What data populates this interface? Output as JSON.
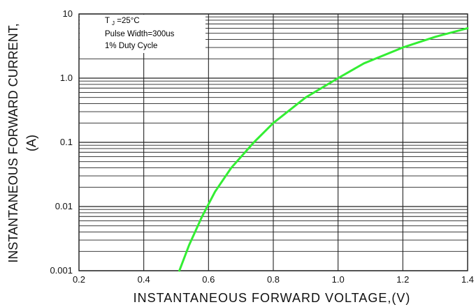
{
  "chart_data": {
    "type": "line",
    "title": "",
    "xlabel": "INSTANTANEOUS FORWARD VOLTAGE,(V)",
    "ylabel_line1": "INSTANTANEOUS FORWARD CURRENT,",
    "ylabel_line2": "(A)",
    "xlim": [
      0.2,
      1.4
    ],
    "ylim": [
      0.001,
      10
    ],
    "yscale": "log",
    "grid": true,
    "x_ticks": [
      0.2,
      0.4,
      0.6,
      0.8,
      1.0,
      1.2,
      1.4
    ],
    "x_tick_labels": [
      "0.2",
      "0.4",
      "0.6",
      "0.8",
      "1.0",
      "1.2",
      "1.4"
    ],
    "y_ticks": [
      0.001,
      0.01,
      0.1,
      1,
      10
    ],
    "y_tick_labels": [
      "0.001",
      "0.01",
      "0.1",
      "1.0",
      "10"
    ],
    "annotations": {
      "line1_main": "T",
      "line1_sub": "J",
      "line1_rest": "=25°C",
      "line2": "Pulse Width=300us",
      "line3": "1% Duty Cycle"
    },
    "series": [
      {
        "color": "#33ee33",
        "x": [
          0.51,
          0.54,
          0.58,
          0.62,
          0.67,
          0.74,
          0.8,
          0.9,
          1.0,
          1.08,
          1.2,
          1.3,
          1.4
        ],
        "y": [
          0.001,
          0.0025,
          0.007,
          0.017,
          0.04,
          0.1,
          0.2,
          0.5,
          1.0,
          1.7,
          3.0,
          4.4,
          6.0
        ]
      }
    ]
  }
}
